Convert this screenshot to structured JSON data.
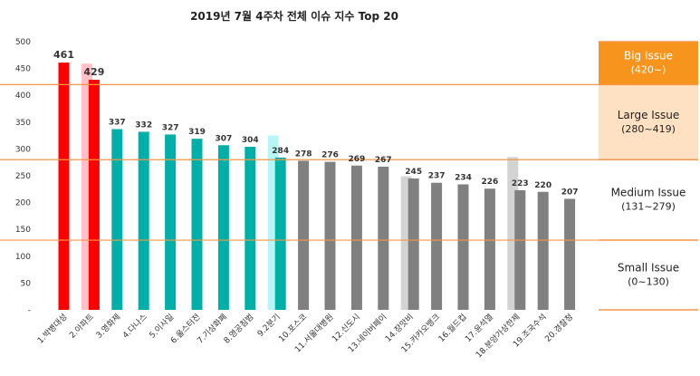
{
  "chart_data": {
    "type": "bar",
    "title": "2019년 7월 4주차 전체 이슈 지수 Top 20",
    "y_ticks": [
      "500",
      "450",
      "400",
      "350",
      "300",
      "250",
      "200",
      "150",
      "100",
      "50",
      "-"
    ],
    "ylim": [
      0,
      500
    ],
    "grid": false,
    "categories": [
      "1.박병대성",
      "2.아파트",
      "3.영화제",
      "4.다나스",
      "5.이사일",
      "6.울스터전",
      "7.기상화폐",
      "8.영공침범",
      "9.2분기",
      "10.포스코",
      "11.서울대병원",
      "12.신도시",
      "13.네이버페이",
      "14.장맛비",
      "15.카카오뱅크",
      "16.월드컵",
      "17.윤석열",
      "18.분양가상한제",
      "19.조국수석",
      "20.경찰청"
    ],
    "values": [
      461,
      429,
      337,
      332,
      327,
      319,
      307,
      304,
      284,
      278,
      276,
      269,
      267,
      245,
      237,
      234,
      226,
      223,
      220,
      207
    ],
    "value_labels": [
      "461",
      "429",
      "337",
      "332",
      "327",
      "319",
      "307",
      "304",
      "284",
      "278",
      "276",
      "269",
      "267",
      "245",
      "237",
      "234",
      "226",
      "223",
      "220",
      "207"
    ],
    "previous_values": [
      null,
      459,
      null,
      null,
      null,
      null,
      null,
      null,
      325,
      null,
      null,
      null,
      null,
      249,
      null,
      null,
      null,
      285,
      null,
      null
    ],
    "thresholds": [
      420,
      280,
      130
    ],
    "zones": [
      {
        "title": "Big Issue",
        "range": "(420~)",
        "fill": "#f7941d",
        "text_color": "#ffffff"
      },
      {
        "title": "Large Issue",
        "range": "(280~419)",
        "fill": "#fde1c2",
        "text_color": "#222222"
      },
      {
        "title": "Medium Issue",
        "range": "(131~279)",
        "fill": "#ffffff",
        "text_color": "#222222"
      },
      {
        "title": "Small Issue",
        "range": "(0~130)",
        "fill": "#ffffff",
        "text_color": "#222222"
      }
    ],
    "colors": {
      "big": "#ff0000",
      "big_prev": "#ffc0c6",
      "large": "#00b0a8",
      "large_prev": "#b8f6f6",
      "medium": "#808080",
      "medium_prev": "#d3d3d3",
      "threshold_line": "#f79646"
    }
  }
}
